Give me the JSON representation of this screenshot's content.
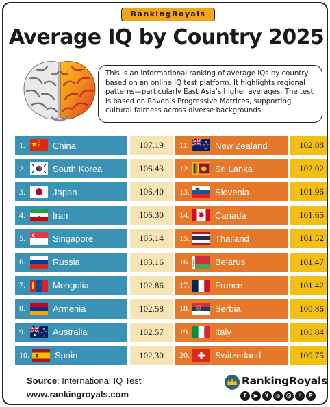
{
  "header": {
    "brand": "RankingRoyals",
    "title": "Average IQ by Country 2025",
    "description": "This is an informational ranking of average IQs by country based on an online IQ test platform. It highlights regional patterns—particularly East Asia’s higher averages. The test is based on Raven’s Progressive Matrices, supporting cultural fairness across diverse backgrounds"
  },
  "chart_data": {
    "type": "table",
    "title": "Average IQ by Country 2025",
    "rows": [
      {
        "rank": "1.",
        "country": "China",
        "iq": "107.19",
        "flag": "china-flag"
      },
      {
        "rank": "2.",
        "country": "South Korea",
        "iq": "106.43",
        "flag": "south-korea-flag"
      },
      {
        "rank": "3.",
        "country": "Japan",
        "iq": "106.40",
        "flag": "japan-flag"
      },
      {
        "rank": "4.",
        "country": "Iran",
        "iq": "106.30",
        "flag": "iran-flag"
      },
      {
        "rank": "5.",
        "country": "Singapore",
        "iq": "105.14",
        "flag": "singapore-flag"
      },
      {
        "rank": "6.",
        "country": "Russia",
        "iq": "103.16",
        "flag": "russia-flag"
      },
      {
        "rank": "7.",
        "country": "Mongolia",
        "iq": "102.86",
        "flag": "mongolia-flag"
      },
      {
        "rank": "8.",
        "country": "Armenia",
        "iq": "102.58",
        "flag": "armenia-flag"
      },
      {
        "rank": "9.",
        "country": "Australia",
        "iq": "102.57",
        "flag": "australia-flag"
      },
      {
        "rank": "10.",
        "country": "Spain",
        "iq": "102.30",
        "flag": "spain-flag"
      },
      {
        "rank": "11.",
        "country": "New Zealand",
        "iq": "102.08",
        "flag": "new-zealand-flag"
      },
      {
        "rank": "12.",
        "country": "Sri Lanka",
        "iq": "102.02",
        "flag": "sri-lanka-flag"
      },
      {
        "rank": "13.",
        "country": "Slovenia",
        "iq": "101.96",
        "flag": "slovenia-flag"
      },
      {
        "rank": "14.",
        "country": "Canada",
        "iq": "101.65",
        "flag": "canada-flag"
      },
      {
        "rank": "15.",
        "country": "Thailand",
        "iq": "101.52",
        "flag": "thailand-flag"
      },
      {
        "rank": "16.",
        "country": "Belarus",
        "iq": "101.47",
        "flag": "belarus-flag"
      },
      {
        "rank": "17.",
        "country": "France",
        "iq": "101.42",
        "flag": "france-flag"
      },
      {
        "rank": "18.",
        "country": "Serbia",
        "iq": "100.86",
        "flag": "serbia-flag"
      },
      {
        "rank": "19.",
        "country": "Italy",
        "iq": "100.84",
        "flag": "italy-flag"
      },
      {
        "rank": "20.",
        "country": "Switzerland",
        "iq": "100.75",
        "flag": "switzerland-flag"
      }
    ]
  },
  "footer": {
    "source_label": "Source",
    "source_value": ": International IQ Test",
    "website": "www.rankingroyals.com",
    "logo_text": "RankingRoyals",
    "socials": [
      {
        "icon": "facebook-icon",
        "glyph": "f"
      },
      {
        "icon": "youtube-icon",
        "glyph": "▶"
      },
      {
        "icon": "x-icon",
        "glyph": "X"
      },
      {
        "icon": "instagram-icon",
        "glyph": "◎"
      },
      {
        "icon": "threads-icon",
        "glyph": "@"
      },
      {
        "icon": "tiktok-icon",
        "glyph": "♪"
      },
      {
        "icon": "pinterest-icon",
        "glyph": "P"
      }
    ]
  },
  "colors": {
    "left_label": "#3a92b5",
    "left_value": "#f7e4b5",
    "right_label": "#e5782a",
    "right_value": "#f4bf14",
    "brand": "#f2a51c"
  }
}
